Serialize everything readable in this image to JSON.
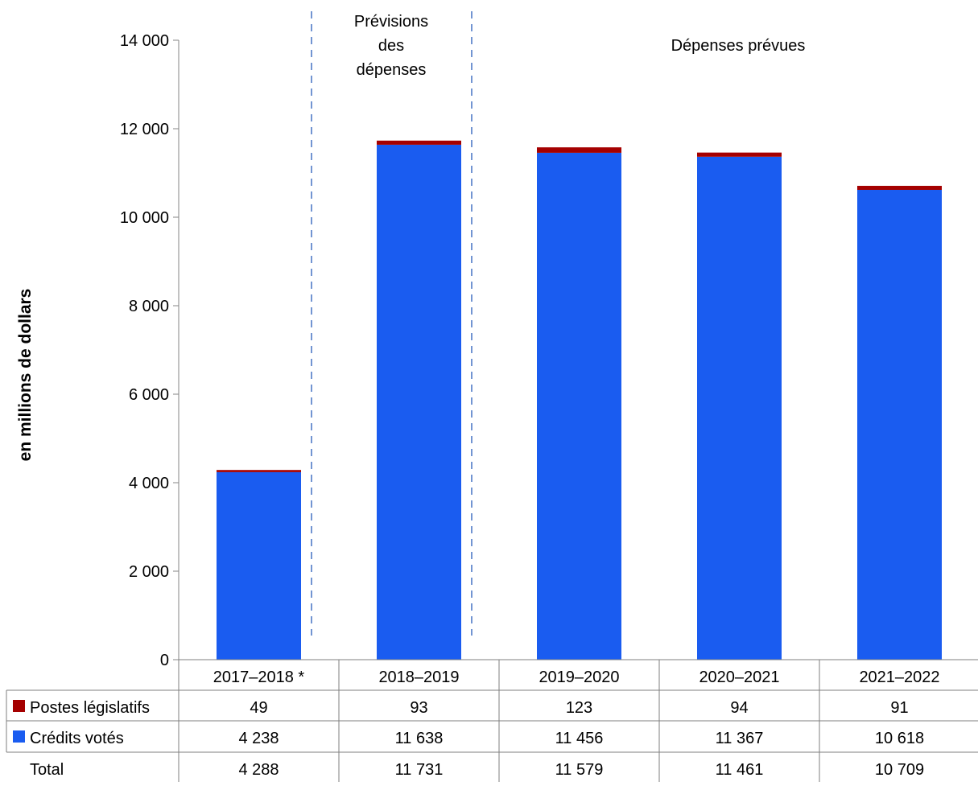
{
  "chart_data": {
    "type": "bar",
    "stacked": true,
    "title": "",
    "xlabel": "",
    "ylabel": "en millions de dollars",
    "ylim": [
      0,
      14000
    ],
    "yticks": [
      0,
      2000,
      4000,
      6000,
      8000,
      10000,
      12000,
      14000
    ],
    "ytick_labels": [
      "0",
      "2 000",
      "4 000",
      "6 000",
      "8 000",
      "10 000",
      "12 000",
      "14 000"
    ],
    "grid": false,
    "categories": [
      "2017–2018 *",
      "2018–2019",
      "2019–2020",
      "2020–2021",
      "2021–2022"
    ],
    "series": [
      {
        "name": "Crédits votés",
        "color": "#1A5CF0",
        "values": [
          4238,
          11638,
          11456,
          11367,
          10618
        ],
        "labels": [
          "4 238",
          "11 638",
          "11 456",
          "11 367",
          "10 618"
        ]
      },
      {
        "name": "Postes législatifs",
        "color": "#A50000",
        "values": [
          49,
          93,
          123,
          94,
          91
        ],
        "labels": [
          "49",
          "93",
          "123",
          "94",
          "91"
        ]
      }
    ],
    "total": {
      "name": "Total",
      "values": [
        4288,
        11731,
        11579,
        11461,
        10709
      ],
      "labels": [
        "4 288",
        "11 731",
        "11 579",
        "11 461",
        "10 709"
      ]
    },
    "legend": "data-table-left",
    "annotations": [
      {
        "lines": [
          "Prévisions",
          "des",
          "dépenses"
        ]
      },
      {
        "lines": [
          "Dépenses prévues"
        ]
      }
    ]
  }
}
